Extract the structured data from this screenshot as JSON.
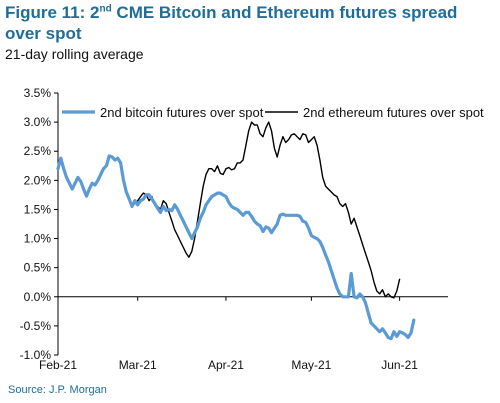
{
  "header": {
    "title_prefix": "Figure 11: 2",
    "title_superscript": "nd",
    "title_suffix": " CME Bitcoin and Ethereum futures spread over spot",
    "subtitle": "21-day rolling average"
  },
  "footer": {
    "source": "Source: J.P. Morgan"
  },
  "colors": {
    "title": "#1f6e99",
    "bitcoin_series": "#5b9bd5",
    "ethereum_series": "#000000",
    "source": "#1f6e99"
  },
  "chart_data": {
    "type": "line",
    "title": "Figure 11: 2nd CME Bitcoin and Ethereum futures spread over spot",
    "subtitle": "21-day rolling average",
    "xlabel": "",
    "ylabel": "",
    "x_axis_type": "date",
    "xlim": [
      "2021-02-01",
      "2021-06-18"
    ],
    "ylim": [
      -1.0,
      3.5
    ],
    "y_ticks": [
      -1.0,
      -0.5,
      0.0,
      0.5,
      1.0,
      1.5,
      2.0,
      2.5,
      3.0,
      3.5
    ],
    "y_tick_labels": [
      "-1.0%",
      "-0.5%",
      "0.0%",
      "0.5%",
      "1.0%",
      "1.5%",
      "2.0%",
      "2.5%",
      "3.0%",
      "3.5%"
    ],
    "x_ticks": [
      "2021-02-01",
      "2021-03-01",
      "2021-04-01",
      "2021-05-01",
      "2021-06-01"
    ],
    "x_tick_labels": [
      "Feb-21",
      "Mar-21",
      "Apr-21",
      "May-21",
      "Jun-21"
    ],
    "grid": false,
    "legend_position": "top",
    "series": [
      {
        "name": "2nd bitcoin futures over spot",
        "color": "#5b9bd5",
        "points": [
          [
            "2021-02-01",
            2.2
          ],
          [
            "2021-02-02",
            2.38
          ],
          [
            "2021-02-03",
            2.2
          ],
          [
            "2021-02-04",
            2.05
          ],
          [
            "2021-02-05",
            1.95
          ],
          [
            "2021-02-06",
            1.85
          ],
          [
            "2021-02-07",
            1.95
          ],
          [
            "2021-02-08",
            2.05
          ],
          [
            "2021-02-09",
            1.98
          ],
          [
            "2021-02-10",
            1.85
          ],
          [
            "2021-02-11",
            1.73
          ],
          [
            "2021-02-12",
            1.85
          ],
          [
            "2021-02-13",
            1.95
          ],
          [
            "2021-02-14",
            1.92
          ],
          [
            "2021-02-15",
            2.0
          ],
          [
            "2021-02-16",
            2.1
          ],
          [
            "2021-02-17",
            2.2
          ],
          [
            "2021-02-18",
            2.25
          ],
          [
            "2021-02-19",
            2.42
          ],
          [
            "2021-02-20",
            2.4
          ],
          [
            "2021-02-21",
            2.35
          ],
          [
            "2021-02-22",
            2.38
          ],
          [
            "2021-02-23",
            2.3
          ],
          [
            "2021-02-24",
            2.0
          ],
          [
            "2021-02-25",
            1.8
          ],
          [
            "2021-02-26",
            1.68
          ],
          [
            "2021-02-27",
            1.55
          ],
          [
            "2021-02-28",
            1.65
          ],
          [
            "2021-03-01",
            1.58
          ],
          [
            "2021-03-02",
            1.65
          ],
          [
            "2021-03-03",
            1.68
          ],
          [
            "2021-03-04",
            1.75
          ],
          [
            "2021-03-05",
            1.75
          ],
          [
            "2021-03-06",
            1.68
          ],
          [
            "2021-03-07",
            1.6
          ],
          [
            "2021-03-08",
            1.52
          ],
          [
            "2021-03-09",
            1.45
          ],
          [
            "2021-03-10",
            1.55
          ],
          [
            "2021-03-11",
            1.48
          ],
          [
            "2021-03-12",
            1.5
          ],
          [
            "2021-03-13",
            1.48
          ],
          [
            "2021-03-14",
            1.58
          ],
          [
            "2021-03-15",
            1.5
          ],
          [
            "2021-03-16",
            1.4
          ],
          [
            "2021-03-17",
            1.3
          ],
          [
            "2021-03-18",
            1.2
          ],
          [
            "2021-03-19",
            1.1
          ],
          [
            "2021-03-20",
            1.0
          ],
          [
            "2021-03-21",
            1.1
          ],
          [
            "2021-03-22",
            1.2
          ],
          [
            "2021-03-23",
            1.35
          ],
          [
            "2021-03-24",
            1.45
          ],
          [
            "2021-03-25",
            1.58
          ],
          [
            "2021-03-26",
            1.65
          ],
          [
            "2021-03-27",
            1.72
          ],
          [
            "2021-03-28",
            1.75
          ],
          [
            "2021-03-29",
            1.78
          ],
          [
            "2021-03-30",
            1.78
          ],
          [
            "2021-03-31",
            1.75
          ],
          [
            "2021-04-01",
            1.72
          ],
          [
            "2021-04-02",
            1.62
          ],
          [
            "2021-04-03",
            1.55
          ],
          [
            "2021-04-04",
            1.52
          ],
          [
            "2021-04-05",
            1.5
          ],
          [
            "2021-04-06",
            1.45
          ],
          [
            "2021-04-07",
            1.4
          ],
          [
            "2021-04-08",
            1.45
          ],
          [
            "2021-04-09",
            1.45
          ],
          [
            "2021-04-10",
            1.38
          ],
          [
            "2021-04-11",
            1.3
          ],
          [
            "2021-04-12",
            1.25
          ],
          [
            "2021-04-13",
            1.22
          ],
          [
            "2021-04-14",
            1.12
          ],
          [
            "2021-04-15",
            1.2
          ],
          [
            "2021-04-16",
            1.18
          ],
          [
            "2021-04-17",
            1.1
          ],
          [
            "2021-04-18",
            1.18
          ],
          [
            "2021-04-19",
            1.25
          ],
          [
            "2021-04-20",
            1.4
          ],
          [
            "2021-04-21",
            1.42
          ],
          [
            "2021-04-22",
            1.4
          ],
          [
            "2021-04-23",
            1.4
          ],
          [
            "2021-04-24",
            1.4
          ],
          [
            "2021-04-25",
            1.4
          ],
          [
            "2021-04-26",
            1.4
          ],
          [
            "2021-04-27",
            1.38
          ],
          [
            "2021-04-28",
            1.3
          ],
          [
            "2021-04-29",
            1.28
          ],
          [
            "2021-04-30",
            1.18
          ],
          [
            "2021-05-01",
            1.05
          ],
          [
            "2021-05-02",
            1.02
          ],
          [
            "2021-05-03",
            1.0
          ],
          [
            "2021-05-04",
            0.95
          ],
          [
            "2021-05-05",
            0.85
          ],
          [
            "2021-05-06",
            0.72
          ],
          [
            "2021-05-07",
            0.6
          ],
          [
            "2021-05-08",
            0.45
          ],
          [
            "2021-05-09",
            0.3
          ],
          [
            "2021-05-10",
            0.15
          ],
          [
            "2021-05-11",
            0.05
          ],
          [
            "2021-05-12",
            0.0
          ],
          [
            "2021-05-13",
            0.0
          ],
          [
            "2021-05-14",
            0.0
          ],
          [
            "2021-05-15",
            0.4
          ],
          [
            "2021-05-16",
            0.0
          ],
          [
            "2021-05-17",
            -0.02
          ],
          [
            "2021-05-18",
            0.05
          ],
          [
            "2021-05-19",
            0.0
          ],
          [
            "2021-05-20",
            -0.1
          ],
          [
            "2021-05-21",
            -0.28
          ],
          [
            "2021-05-22",
            -0.45
          ],
          [
            "2021-05-23",
            -0.5
          ],
          [
            "2021-05-24",
            -0.55
          ],
          [
            "2021-05-25",
            -0.6
          ],
          [
            "2021-05-26",
            -0.55
          ],
          [
            "2021-05-27",
            -0.62
          ],
          [
            "2021-05-28",
            -0.7
          ],
          [
            "2021-05-29",
            -0.72
          ],
          [
            "2021-05-30",
            -0.6
          ],
          [
            "2021-05-31",
            -0.68
          ],
          [
            "2021-06-01",
            -0.6
          ],
          [
            "2021-06-02",
            -0.62
          ],
          [
            "2021-06-03",
            -0.65
          ],
          [
            "2021-06-04",
            -0.7
          ],
          [
            "2021-06-05",
            -0.62
          ],
          [
            "2021-06-06",
            -0.4
          ]
        ]
      },
      {
        "name": "2nd ethereum futures over spot",
        "color": "#000000",
        "points": [
          [
            "2021-02-28",
            1.6
          ],
          [
            "2021-03-01",
            1.65
          ],
          [
            "2021-03-02",
            1.72
          ],
          [
            "2021-03-03",
            1.78
          ],
          [
            "2021-03-04",
            1.75
          ],
          [
            "2021-03-05",
            1.65
          ],
          [
            "2021-03-06",
            1.72
          ],
          [
            "2021-03-07",
            1.6
          ],
          [
            "2021-03-08",
            1.55
          ],
          [
            "2021-03-09",
            1.5
          ],
          [
            "2021-03-10",
            1.65
          ],
          [
            "2021-03-11",
            1.6
          ],
          [
            "2021-03-12",
            1.45
          ],
          [
            "2021-03-13",
            1.3
          ],
          [
            "2021-03-14",
            1.15
          ],
          [
            "2021-03-15",
            1.05
          ],
          [
            "2021-03-16",
            0.95
          ],
          [
            "2021-03-17",
            0.85
          ],
          [
            "2021-03-18",
            0.75
          ],
          [
            "2021-03-19",
            0.68
          ],
          [
            "2021-03-20",
            0.78
          ],
          [
            "2021-03-21",
            1.0
          ],
          [
            "2021-03-22",
            1.3
          ],
          [
            "2021-03-23",
            1.6
          ],
          [
            "2021-03-24",
            1.9
          ],
          [
            "2021-03-25",
            2.1
          ],
          [
            "2021-03-26",
            2.2
          ],
          [
            "2021-03-27",
            2.2
          ],
          [
            "2021-03-28",
            2.15
          ],
          [
            "2021-03-29",
            2.25
          ],
          [
            "2021-03-30",
            2.12
          ],
          [
            "2021-03-31",
            2.1
          ],
          [
            "2021-04-01",
            2.2
          ],
          [
            "2021-04-02",
            2.22
          ],
          [
            "2021-04-03",
            2.18
          ],
          [
            "2021-04-04",
            2.2
          ],
          [
            "2021-04-05",
            2.3
          ],
          [
            "2021-04-06",
            2.3
          ],
          [
            "2021-04-07",
            2.35
          ],
          [
            "2021-04-08",
            2.6
          ],
          [
            "2021-04-09",
            2.85
          ],
          [
            "2021-04-10",
            3.0
          ],
          [
            "2021-04-11",
            2.95
          ],
          [
            "2021-04-12",
            2.95
          ],
          [
            "2021-04-13",
            2.8
          ],
          [
            "2021-04-14",
            2.75
          ],
          [
            "2021-04-15",
            2.9
          ],
          [
            "2021-04-16",
            3.0
          ],
          [
            "2021-04-17",
            2.85
          ],
          [
            "2021-04-18",
            2.55
          ],
          [
            "2021-04-19",
            2.4
          ],
          [
            "2021-04-20",
            2.6
          ],
          [
            "2021-04-21",
            2.75
          ],
          [
            "2021-04-22",
            2.65
          ],
          [
            "2021-04-23",
            2.7
          ],
          [
            "2021-04-24",
            2.78
          ],
          [
            "2021-04-25",
            2.8
          ],
          [
            "2021-04-26",
            2.75
          ],
          [
            "2021-04-27",
            2.7
          ],
          [
            "2021-04-28",
            2.8
          ],
          [
            "2021-04-29",
            2.78
          ],
          [
            "2021-04-30",
            2.65
          ],
          [
            "2021-05-01",
            2.7
          ],
          [
            "2021-05-02",
            2.75
          ],
          [
            "2021-05-03",
            2.6
          ],
          [
            "2021-05-04",
            2.35
          ],
          [
            "2021-05-05",
            2.05
          ],
          [
            "2021-05-06",
            1.9
          ],
          [
            "2021-05-07",
            1.85
          ],
          [
            "2021-05-08",
            1.8
          ],
          [
            "2021-05-09",
            1.75
          ],
          [
            "2021-05-10",
            1.72
          ],
          [
            "2021-05-11",
            1.6
          ],
          [
            "2021-05-12",
            1.55
          ],
          [
            "2021-05-13",
            1.6
          ],
          [
            "2021-05-14",
            1.45
          ],
          [
            "2021-05-15",
            1.25
          ],
          [
            "2021-05-16",
            1.35
          ],
          [
            "2021-05-17",
            1.2
          ],
          [
            "2021-05-18",
            1.05
          ],
          [
            "2021-05-19",
            0.9
          ],
          [
            "2021-05-20",
            0.75
          ],
          [
            "2021-05-21",
            0.6
          ],
          [
            "2021-05-22",
            0.45
          ],
          [
            "2021-05-23",
            0.25
          ],
          [
            "2021-05-24",
            0.1
          ],
          [
            "2021-05-25",
            0.05
          ],
          [
            "2021-05-26",
            0.12
          ],
          [
            "2021-05-27",
            0.0
          ],
          [
            "2021-05-28",
            0.05
          ],
          [
            "2021-05-29",
            0.0
          ],
          [
            "2021-05-30",
            -0.02
          ],
          [
            "2021-05-31",
            0.1
          ],
          [
            "2021-06-01",
            0.3
          ]
        ]
      }
    ]
  }
}
